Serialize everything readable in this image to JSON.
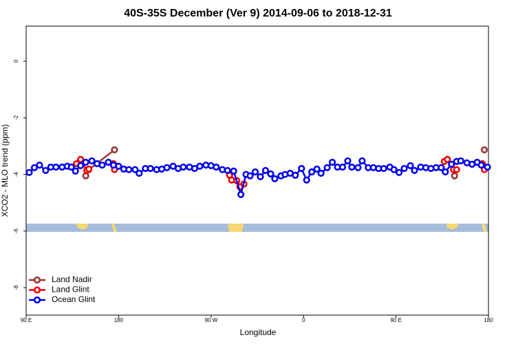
{
  "chart_data": {
    "type": "line",
    "title": "40S-35S December (Ver 9)   2014-09-06 to 2018-12-31",
    "xlabel": "Longitude",
    "ylabel": "XCO2 - MLO trend (ppm)",
    "xlim": [
      90,
      540
    ],
    "ylim": [
      -8.97,
      1.24
    ],
    "xticks": [
      {
        "value": 90,
        "label": "90 E"
      },
      180,
      {
        "value": 270,
        "label": "90 W"
      },
      {
        "value": 360,
        "label": "0"
      },
      {
        "value": 450,
        "label": "90 E"
      },
      {
        "value": 540,
        "label": "180"
      }
    ],
    "yticks": [
      0,
      -2,
      -4,
      -6,
      -8
    ],
    "legend": "bottomleft",
    "series": [
      {
        "name": "Land Nadir",
        "color": "#993333",
        "x": [
          148,
          151,
          176,
          340,
          507,
          520,
          536
        ],
        "values": [
          -4.05,
          -3.83,
          -3.13,
          null,
          -4.05,
          null,
          -3.13
        ]
      },
      {
        "name": "Land Glint",
        "color": "#ee0000",
        "x": [
          139,
          143,
          149,
          151,
          163,
          175,
          176,
          230,
          288,
          290,
          295,
          298,
          302,
          400,
          497,
          500,
          506,
          509,
          520,
          534,
          536
        ],
        "values": [
          -3.62,
          -3.47,
          -3.86,
          -3.81,
          null,
          -3.62,
          -3.83,
          null,
          -4.03,
          -4.2,
          -4.22,
          -4.44,
          -4.34,
          null,
          -3.54,
          -3.47,
          -3.83,
          -3.83,
          null,
          -3.62,
          -3.83
        ]
      },
      {
        "name": "Ocean Glint",
        "color": "#0000ee",
        "x": [
          93,
          98,
          103,
          109,
          114,
          119,
          125,
          130,
          134,
          138,
          143,
          148,
          154,
          159,
          164,
          170,
          175,
          180,
          185,
          190,
          196,
          200,
          206,
          211,
          217,
          222,
          227,
          233,
          238,
          243,
          249,
          254,
          259,
          265,
          270,
          275,
          281,
          286,
          292,
          299,
          304,
          308,
          313,
          318,
          323,
          328,
          332,
          338,
          342,
          347,
          352,
          358,
          363,
          368,
          373,
          377,
          383,
          388,
          393,
          398,
          403,
          407,
          413,
          417,
          423,
          428,
          433,
          438,
          444,
          448,
          453,
          458,
          464,
          468,
          474,
          479,
          484,
          489,
          494,
          498,
          504,
          509,
          513,
          519,
          524,
          529,
          533,
          539
        ],
        "values": [
          -3.93,
          -3.76,
          -3.67,
          -3.86,
          -3.74,
          -3.74,
          -3.74,
          -3.71,
          -3.74,
          -3.88,
          -3.69,
          -3.57,
          -3.52,
          -3.62,
          -3.67,
          -3.57,
          -3.67,
          -3.71,
          -3.81,
          -3.83,
          -3.83,
          -3.96,
          -3.79,
          -3.79,
          -3.83,
          -3.81,
          -3.76,
          -3.71,
          -3.79,
          -3.74,
          -3.74,
          -3.79,
          -3.71,
          -3.67,
          -3.69,
          -3.74,
          -3.83,
          -3.86,
          -3.88,
          -4.71,
          -4.0,
          -4.05,
          -3.91,
          -4.08,
          -3.86,
          -3.98,
          -4.15,
          -4.05,
          -4.0,
          -3.96,
          -4.03,
          -3.79,
          -4.2,
          -3.91,
          -3.81,
          -3.96,
          -3.76,
          -3.57,
          -3.74,
          -3.74,
          -3.52,
          -3.74,
          -3.76,
          -3.52,
          -3.76,
          -3.76,
          -3.79,
          -3.79,
          -3.74,
          -3.83,
          -3.93,
          -3.79,
          -3.69,
          -3.86,
          -3.74,
          -3.76,
          -3.79,
          -3.76,
          -3.76,
          -3.91,
          -3.64,
          -3.54,
          -3.52,
          -3.59,
          -3.64,
          -3.57,
          -3.67,
          -3.74
        ]
      }
    ]
  }
}
